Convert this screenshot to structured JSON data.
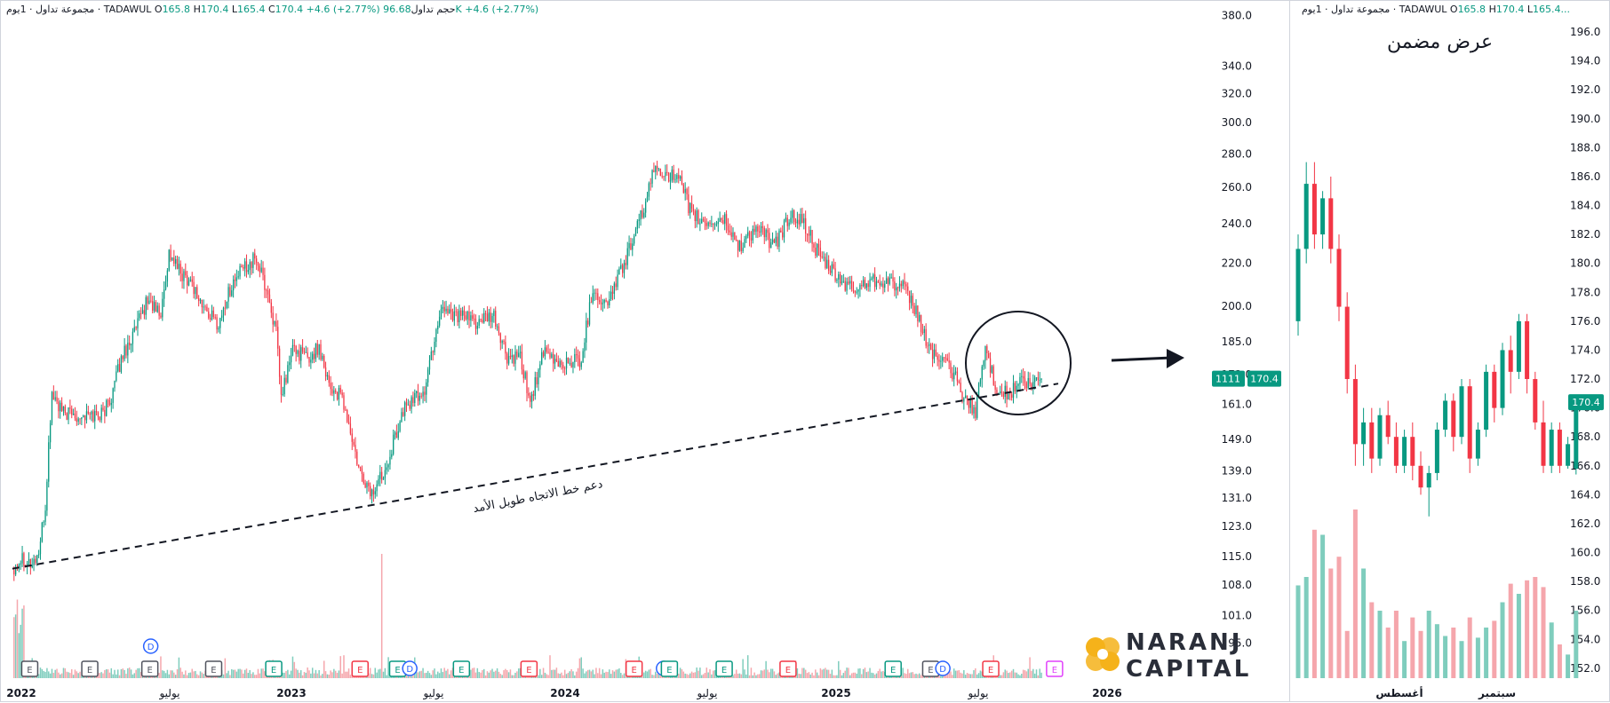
{
  "main_header": {
    "symbol_line": "مجموعة تداول · 1يوم · TADAWUL",
    "o_label": "O",
    "o_value": "165.8",
    "h_label": "H",
    "h_value": "170.4",
    "l_label": "L",
    "l_value": "165.4",
    "c_label": "C",
    "c_value": "170.4",
    "change": "+4.6 (+2.77%)",
    "volume_label": "حجم تداول",
    "volume_value": "96.68K",
    "volume_change": "+4.6 (+2.77%)"
  },
  "sub_header": {
    "symbol_line": "مجموعة تداول · 1يوم · TADAWUL",
    "o_label": "O",
    "o_value": "165.8",
    "h_label": "H",
    "h_value": "170.4",
    "l_label": "L",
    "l_value": "165.4..."
  },
  "sub_title": "عرض مضمن",
  "logo": {
    "line1": "NARANJ",
    "line2": "CAPITAL"
  },
  "colors": {
    "up": "#089981",
    "down": "#f23645",
    "vol_up": "#7fcdbd",
    "vol_down": "#f5a6ac",
    "badge": "#089981",
    "earnings_purple": "#e040fb"
  },
  "chart_data": [
    {
      "type": "candlestick",
      "scale": "log",
      "x_tick_labels": [
        "2022",
        "يوليو",
        "2023",
        "يوليو",
        "2024",
        "يوليو",
        "2025",
        "يوليو",
        "2026"
      ],
      "y_tick_labels": [
        380.0,
        340.0,
        320.0,
        300.0,
        280.0,
        260.0,
        240.0,
        220.0,
        200.0,
        185.0,
        172.0,
        161.0,
        149.0,
        139.0,
        131.0,
        123.0,
        115.0,
        108.0,
        101.0,
        95.0
      ],
      "ylim": [
        92,
        385
      ],
      "last_price": "170.4",
      "price_badge_left": "1111",
      "key_prices": [
        {
          "x": 0,
          "y": 112
        },
        {
          "x": 6,
          "y": 115
        },
        {
          "x": 12,
          "y": 113
        },
        {
          "x": 16,
          "y": 116
        },
        {
          "x": 20,
          "y": 128
        },
        {
          "x": 24,
          "y": 165
        },
        {
          "x": 30,
          "y": 158
        },
        {
          "x": 45,
          "y": 157
        },
        {
          "x": 55,
          "y": 158
        },
        {
          "x": 60,
          "y": 164
        },
        {
          "x": 67,
          "y": 180
        },
        {
          "x": 75,
          "y": 190
        },
        {
          "x": 82,
          "y": 203
        },
        {
          "x": 90,
          "y": 196
        },
        {
          "x": 95,
          "y": 225
        },
        {
          "x": 102,
          "y": 215
        },
        {
          "x": 108,
          "y": 212
        },
        {
          "x": 115,
          "y": 200
        },
        {
          "x": 125,
          "y": 192
        },
        {
          "x": 132,
          "y": 208
        },
        {
          "x": 140,
          "y": 218
        },
        {
          "x": 148,
          "y": 222
        },
        {
          "x": 155,
          "y": 205
        },
        {
          "x": 160,
          "y": 188
        },
        {
          "x": 163,
          "y": 163
        },
        {
          "x": 170,
          "y": 182
        },
        {
          "x": 180,
          "y": 178
        },
        {
          "x": 186,
          "y": 183
        },
        {
          "x": 193,
          "y": 167
        },
        {
          "x": 200,
          "y": 163
        },
        {
          "x": 210,
          "y": 139
        },
        {
          "x": 218,
          "y": 132
        },
        {
          "x": 226,
          "y": 140
        },
        {
          "x": 238,
          "y": 160
        },
        {
          "x": 250,
          "y": 166
        },
        {
          "x": 260,
          "y": 200
        },
        {
          "x": 270,
          "y": 196
        },
        {
          "x": 282,
          "y": 193
        },
        {
          "x": 292,
          "y": 195
        },
        {
          "x": 300,
          "y": 178
        },
        {
          "x": 308,
          "y": 178
        },
        {
          "x": 314,
          "y": 162
        },
        {
          "x": 322,
          "y": 180
        },
        {
          "x": 332,
          "y": 176
        },
        {
          "x": 345,
          "y": 178
        },
        {
          "x": 352,
          "y": 208
        },
        {
          "x": 360,
          "y": 200
        },
        {
          "x": 370,
          "y": 218
        },
        {
          "x": 380,
          "y": 240
        },
        {
          "x": 390,
          "y": 272
        },
        {
          "x": 398,
          "y": 268
        },
        {
          "x": 405,
          "y": 262
        },
        {
          "x": 412,
          "y": 245
        },
        {
          "x": 420,
          "y": 240
        },
        {
          "x": 432,
          "y": 242
        },
        {
          "x": 440,
          "y": 228
        },
        {
          "x": 452,
          "y": 238
        },
        {
          "x": 462,
          "y": 228
        },
        {
          "x": 472,
          "y": 245
        },
        {
          "x": 480,
          "y": 240
        },
        {
          "x": 490,
          "y": 222
        },
        {
          "x": 500,
          "y": 213
        },
        {
          "x": 510,
          "y": 207
        },
        {
          "x": 520,
          "y": 212
        },
        {
          "x": 530,
          "y": 212
        },
        {
          "x": 540,
          "y": 208
        },
        {
          "x": 548,
          "y": 198
        },
        {
          "x": 555,
          "y": 183
        },
        {
          "x": 562,
          "y": 178
        },
        {
          "x": 570,
          "y": 173
        },
        {
          "x": 578,
          "y": 162
        },
        {
          "x": 584,
          "y": 159
        },
        {
          "x": 590,
          "y": 182
        },
        {
          "x": 596,
          "y": 168
        },
        {
          "x": 604,
          "y": 164
        },
        {
          "x": 612,
          "y": 170
        },
        {
          "x": 618,
          "y": 167
        },
        {
          "x": 622,
          "y": 170.4
        }
      ],
      "earnings_markers": [
        {
          "label": "E",
          "color": "gray",
          "pos": 0.01
        },
        {
          "label": "E",
          "color": "gray",
          "pos": 0.09
        },
        {
          "label": "E",
          "color": "gray",
          "pos": 0.17
        },
        {
          "label": "D",
          "color": "blue",
          "pos": 0.17
        },
        {
          "label": "E",
          "color": "gray",
          "pos": 0.255
        },
        {
          "label": "E",
          "color": "green",
          "pos": 0.335
        },
        {
          "label": "E",
          "color": "red",
          "pos": 0.45
        },
        {
          "label": "E",
          "color": "green",
          "pos": 0.5
        },
        {
          "label": "D",
          "color": "blue",
          "pos": 0.515
        },
        {
          "label": "E",
          "color": "green",
          "pos": 0.585
        },
        {
          "label": "E",
          "color": "red",
          "pos": 0.675
        },
        {
          "label": "E",
          "color": "red",
          "pos": 0.815
        },
        {
          "label": "D",
          "color": "blue",
          "pos": 0.853
        },
        {
          "label": "E",
          "color": "green",
          "pos": 0.862
        },
        {
          "label": "E",
          "color": "green",
          "pos": 0.935
        },
        {
          "label": "E",
          "color": "red",
          "pos": 1.02
        },
        {
          "label": "E",
          "color": "green",
          "pos": 1.16
        },
        {
          "label": "E",
          "color": "gray",
          "pos": 1.21
        },
        {
          "label": "D",
          "color": "blue",
          "pos": 1.225
        },
        {
          "label": "E",
          "color": "red",
          "pos": 1.29
        },
        {
          "label": "E",
          "color": "purple",
          "pos": 1.375
        }
      ],
      "trendline": {
        "label": "دعم خط الاتجاه طويل الأمد",
        "style": "dashed",
        "from": {
          "x": 0,
          "y": 112
        },
        "to": {
          "x": 622,
          "y": 164
        }
      }
    },
    {
      "type": "candlestick",
      "scale": "linear",
      "x_tick_labels": [
        "أغسطس",
        "سبتمبر"
      ],
      "y_tick_labels": [
        196.0,
        194.0,
        192.0,
        190.0,
        188.0,
        186.0,
        184.0,
        182.0,
        180.0,
        178.0,
        176.0,
        174.0,
        172.0,
        170.0,
        168.0,
        166.0,
        164.0,
        162.0,
        160.0,
        158.0,
        156.0,
        154.0,
        152.0
      ],
      "ylim": [
        151.5,
        196.8
      ],
      "last_price": "170.4",
      "candles": [
        [
          176,
          182,
          175,
          181
        ],
        [
          181,
          187,
          180,
          185.5
        ],
        [
          185.5,
          187,
          181,
          182
        ],
        [
          182,
          185,
          181,
          184.5
        ],
        [
          184.5,
          186,
          180,
          181
        ],
        [
          181,
          182,
          176,
          177
        ],
        [
          177,
          178,
          171,
          172
        ],
        [
          172,
          173,
          166,
          167.5
        ],
        [
          167.5,
          170,
          166,
          169
        ],
        [
          169,
          170,
          165.5,
          166.5
        ],
        [
          166.5,
          170,
          166,
          169.5
        ],
        [
          169.5,
          170.5,
          167.5,
          168
        ],
        [
          168,
          169,
          165.5,
          166
        ],
        [
          166,
          168.5,
          165.5,
          168
        ],
        [
          168,
          169,
          165,
          166
        ],
        [
          166,
          167,
          164,
          164.5
        ],
        [
          164.5,
          166,
          162.5,
          165.5
        ],
        [
          165.5,
          169,
          165,
          168.5
        ],
        [
          168.5,
          171,
          168,
          170.5
        ],
        [
          170.5,
          171,
          167,
          168
        ],
        [
          168,
          172,
          167.5,
          171.5
        ],
        [
          171.5,
          172,
          165.5,
          166.5
        ],
        [
          166.5,
          169,
          166,
          168.5
        ],
        [
          168.5,
          173,
          168,
          172.5
        ],
        [
          172.5,
          173,
          169,
          170
        ],
        [
          170,
          174.5,
          169.5,
          174
        ],
        [
          174,
          175,
          171,
          172.5
        ],
        [
          172.5,
          176.5,
          172,
          176
        ],
        [
          176,
          176.5,
          171,
          172
        ],
        [
          172,
          172.5,
          168.5,
          169
        ],
        [
          169,
          170.5,
          165.5,
          166
        ],
        [
          166,
          169,
          165.5,
          168.5
        ],
        [
          168.5,
          169,
          165.5,
          166
        ],
        [
          166,
          168,
          165.8,
          167.5
        ],
        [
          165.8,
          170.4,
          165.4,
          170.4
        ]
      ]
    }
  ]
}
